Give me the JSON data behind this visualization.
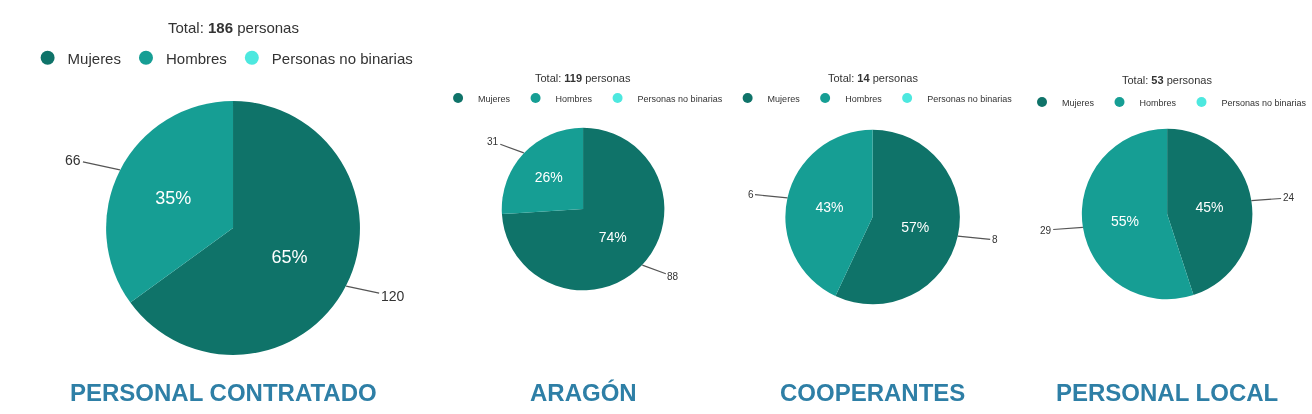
{
  "chart_data": [
    {
      "type": "pie",
      "title": "PERSONAL CONTRATADO",
      "subtitle": "Total: 186 personas",
      "categories": [
        "Mujeres",
        "Hombres",
        "Personas no binarias"
      ],
      "values": [
        65,
        35,
        0
      ],
      "colors": [
        "#0f7369",
        "#169e94",
        "#4de8df"
      ],
      "value_labels": [
        "65%",
        "35%",
        null
      ],
      "annotations": [
        "120",
        "66"
      ],
      "legend": "top"
    },
    {
      "type": "pie",
      "title": "ARAGÓN",
      "subtitle": "Total: 119 personas",
      "categories": [
        "Mujeres",
        "Hombres",
        "Personas no binarias"
      ],
      "values": [
        74,
        26,
        0
      ],
      "colors": [
        "#0f7369",
        "#169e94",
        "#4de8df"
      ],
      "value_labels": [
        "74%",
        "26%",
        null
      ],
      "annotations": [
        "88",
        "31"
      ],
      "legend": "top"
    },
    {
      "type": "pie",
      "title": "COOPERANTES",
      "subtitle": "Total: 14 personas",
      "categories": [
        "Mujeres",
        "Hombres",
        "Personas no binarias"
      ],
      "values": [
        57,
        43,
        0
      ],
      "colors": [
        "#0f7369",
        "#169e94",
        "#4de8df"
      ],
      "value_labels": [
        "57%",
        "43%",
        null
      ],
      "annotations": [
        "8",
        "6"
      ],
      "legend": "top"
    },
    {
      "type": "pie",
      "title": "PERSONAL LOCAL",
      "subtitle": "Total: 53 personas",
      "categories": [
        "Mujeres",
        "Hombres",
        "Personas no binarias"
      ],
      "values": [
        45,
        55,
        0
      ],
      "colors": [
        "#0f7369",
        "#169e94",
        "#4de8df"
      ],
      "value_labels": [
        "45%",
        "55%",
        null
      ],
      "annotations": [
        "24",
        "29"
      ],
      "legend": "top"
    }
  ]
}
